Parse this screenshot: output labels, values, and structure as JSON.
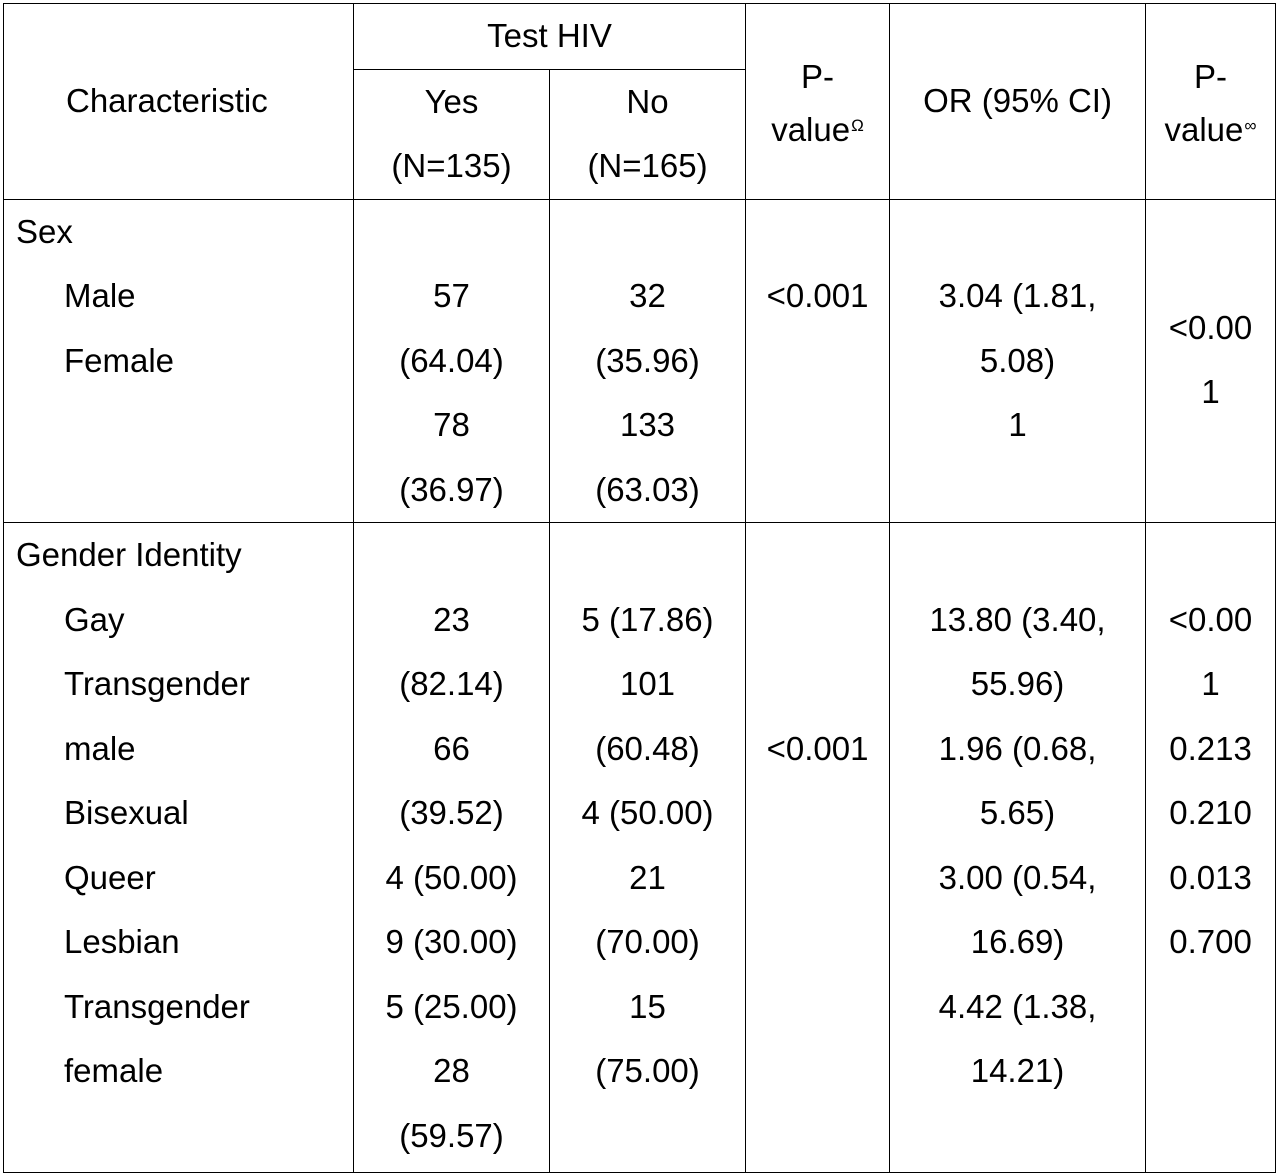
{
  "table": {
    "header": {
      "characteristic": "Characteristic",
      "test_hiv": "Test HIV",
      "yes": "Yes",
      "yes_n": "(N=135)",
      "no": "No",
      "no_n": "(N=165)",
      "pvalue1_a": "P-",
      "pvalue1_b": "value",
      "pvalue1_sup": "Ω",
      "or_ci": "OR (95% CI)",
      "pvalue2_a": "P-",
      "pvalue2_b": "value",
      "pvalue2_sup": "∞"
    },
    "sex": {
      "title": "Sex",
      "labels": [
        "Male",
        "Female"
      ],
      "yes": [
        "57",
        "(64.04)",
        "78",
        "(36.97)"
      ],
      "no": [
        "32",
        "(35.96)",
        "133",
        "(63.03)"
      ],
      "p1": "<0.001",
      "or": [
        "3.04 (1.81,",
        "5.08)",
        "1"
      ],
      "p2": [
        "<0.00",
        "1"
      ]
    },
    "gender": {
      "title": "Gender Identity",
      "labels": [
        "Gay",
        "Transgender",
        "male",
        "Bisexual",
        "Queer",
        "Lesbian",
        "Transgender",
        "female"
      ],
      "yes": [
        "23",
        "(82.14)",
        "66",
        "(39.52)",
        "4 (50.00)",
        "9 (30.00)",
        "5 (25.00)",
        "28",
        "(59.57)"
      ],
      "no": [
        "5 (17.86)",
        "101",
        "(60.48)",
        "4 (50.00)",
        "21",
        "(70.00)",
        "15",
        "(75.00)"
      ],
      "p1": "<0.001",
      "or": [
        "13.80 (3.40,",
        "55.96)",
        "1.96 (0.68,",
        "5.65)",
        "3.00 (0.54,",
        "16.69)",
        "4.42 (1.38,",
        "14.21)"
      ],
      "p2": [
        "<0.00",
        "1",
        "0.213",
        "0.210",
        "0.013",
        "0.700"
      ]
    }
  }
}
